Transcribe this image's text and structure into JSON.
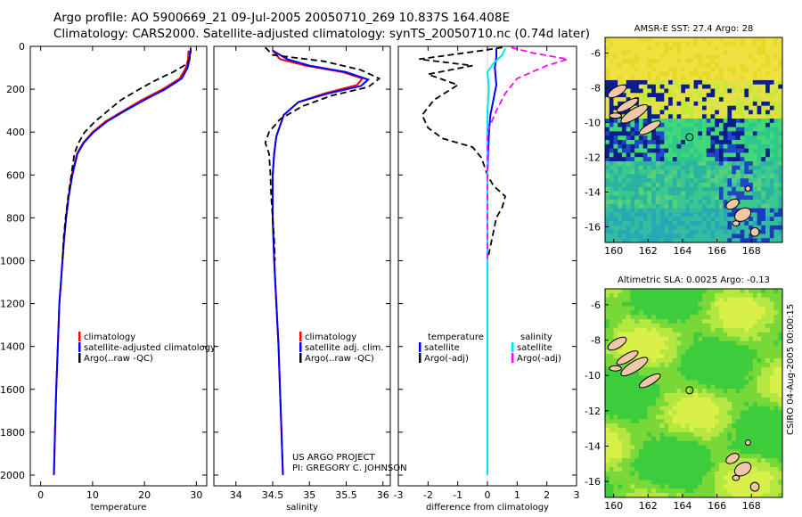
{
  "header": {
    "line1": "Argo profile: AO 5900669_21 09-Jul-2005 20050710_269 10.837S 164.408E",
    "line2": "Climatology: CARS2000. Satellite-adjusted climatology: synTS_20050710.nc (0.74d later)"
  },
  "credit": {
    "line1": "US ARGO PROJECT",
    "line2": "PI: GREGORY C. JOHNSON"
  },
  "sidenote": "CSIRO 04-Aug-2005 00:00:15",
  "colors": {
    "climatology": "#ff0000",
    "satellite": "#0000ff",
    "argo": "#000000",
    "salinity_sat": "#00e5ee",
    "salinity_argo": "#ff00ff"
  },
  "chart_data": [
    {
      "type": "line",
      "title": "",
      "xlabel": "temperature",
      "ylabel": "",
      "xlim": [
        -2,
        32
      ],
      "ylim": [
        2050,
        0
      ],
      "xticks": [
        "0",
        "10",
        "20",
        "30"
      ],
      "xtick_values": [
        0,
        10,
        20,
        30
      ],
      "yticks": [
        "0",
        "200",
        "400",
        "600",
        "800",
        "1000",
        "1200",
        "1400",
        "1600",
        "1800",
        "2000"
      ],
      "legend": [
        "climatology",
        "satellite-adjusted climatology",
        "Argo(..raw -QC)"
      ],
      "series": [
        {
          "name": "climatology",
          "style": "solid",
          "color": "#ff0000",
          "points": [
            [
              28.5,
              20
            ],
            [
              28.4,
              60
            ],
            [
              28.0,
              100
            ],
            [
              26.8,
              150
            ],
            [
              23.5,
              200
            ],
            [
              19.5,
              250
            ],
            [
              16.0,
              300
            ],
            [
              12.5,
              350
            ],
            [
              10.0,
              400
            ],
            [
              8.2,
              450
            ],
            [
              7.0,
              500
            ],
            [
              6.0,
              600
            ],
            [
              5.4,
              700
            ],
            [
              4.9,
              800
            ],
            [
              4.5,
              900
            ],
            [
              4.2,
              1000
            ],
            [
              3.9,
              1100
            ],
            [
              3.6,
              1200
            ],
            [
              3.3,
              1400
            ],
            [
              3.0,
              1600
            ],
            [
              2.75,
              1800
            ],
            [
              2.55,
              2000
            ]
          ]
        },
        {
          "name": "satellite-adjusted climatology",
          "style": "solid",
          "color": "#0000ff",
          "points": [
            [
              28.8,
              20
            ],
            [
              28.7,
              60
            ],
            [
              28.3,
              100
            ],
            [
              27.2,
              150
            ],
            [
              24.0,
              200
            ],
            [
              20.0,
              250
            ],
            [
              16.3,
              300
            ],
            [
              12.8,
              350
            ],
            [
              10.2,
              400
            ],
            [
              8.3,
              450
            ],
            [
              7.1,
              500
            ],
            [
              6.1,
              600
            ],
            [
              5.4,
              700
            ],
            [
              4.9,
              800
            ],
            [
              4.5,
              900
            ],
            [
              4.2,
              1000
            ],
            [
              3.9,
              1100
            ],
            [
              3.6,
              1200
            ],
            [
              3.3,
              1400
            ],
            [
              3.0,
              1600
            ],
            [
              2.75,
              1800
            ],
            [
              2.55,
              2000
            ]
          ]
        },
        {
          "name": "Argo(..raw -QC)",
          "style": "dashed",
          "color": "#000000",
          "points": [
            [
              28.9,
              5
            ],
            [
              28.9,
              40
            ],
            [
              28.3,
              80
            ],
            [
              25.5,
              120
            ],
            [
              22.0,
              160
            ],
            [
              19.0,
              200
            ],
            [
              15.5,
              250
            ],
            [
              13.0,
              300
            ],
            [
              10.5,
              350
            ],
            [
              8.5,
              400
            ],
            [
              7.3,
              450
            ],
            [
              6.5,
              500
            ],
            [
              5.9,
              600
            ],
            [
              5.3,
              700
            ],
            [
              4.8,
              800
            ],
            [
              4.4,
              900
            ],
            [
              4.2,
              1000
            ]
          ]
        }
      ]
    },
    {
      "type": "line",
      "title": "",
      "xlabel": "salinity",
      "ylabel": "",
      "xlim": [
        33.7,
        36.1
      ],
      "ylim": [
        2050,
        0
      ],
      "xticks": [
        "34",
        "34.5",
        "35",
        "35.5",
        "36"
      ],
      "xtick_values": [
        34,
        34.5,
        35,
        35.5,
        36
      ],
      "legend": [
        "climatology",
        "satellite adj. clim.",
        "Argo(..raw -QC)"
      ],
      "series": [
        {
          "name": "climatology",
          "style": "solid",
          "color": "#ff0000",
          "points": [
            [
              34.5,
              20
            ],
            [
              34.6,
              60
            ],
            [
              34.95,
              90
            ],
            [
              35.45,
              120
            ],
            [
              35.72,
              150
            ],
            [
              35.65,
              180
            ],
            [
              35.2,
              220
            ],
            [
              34.85,
              260
            ],
            [
              34.65,
              320
            ],
            [
              34.55,
              420
            ],
            [
              34.52,
              500
            ],
            [
              34.5,
              600
            ],
            [
              34.5,
              800
            ],
            [
              34.52,
              1000
            ],
            [
              34.55,
              1200
            ],
            [
              34.58,
              1400
            ],
            [
              34.6,
              1600
            ],
            [
              34.62,
              1800
            ],
            [
              34.64,
              2000
            ]
          ]
        },
        {
          "name": "satellite adj. clim.",
          "style": "solid",
          "color": "#0000ff",
          "points": [
            [
              34.5,
              20
            ],
            [
              34.7,
              60
            ],
            [
              35.0,
              90
            ],
            [
              35.5,
              120
            ],
            [
              35.8,
              155
            ],
            [
              35.7,
              185
            ],
            [
              35.25,
              220
            ],
            [
              34.85,
              260
            ],
            [
              34.65,
              320
            ],
            [
              34.55,
              420
            ],
            [
              34.52,
              500
            ],
            [
              34.5,
              600
            ],
            [
              34.5,
              800
            ],
            [
              34.52,
              1000
            ],
            [
              34.55,
              1200
            ],
            [
              34.58,
              1400
            ],
            [
              34.6,
              1600
            ],
            [
              34.62,
              1800
            ],
            [
              34.64,
              2000
            ]
          ]
        },
        {
          "name": "Argo(..raw -QC)",
          "style": "dashed",
          "color": "#000000",
          "points": [
            [
              34.4,
              5
            ],
            [
              34.5,
              40
            ],
            [
              35.2,
              70
            ],
            [
              35.7,
              110
            ],
            [
              35.95,
              150
            ],
            [
              35.8,
              190
            ],
            [
              35.3,
              230
            ],
            [
              34.9,
              280
            ],
            [
              34.6,
              340
            ],
            [
              34.45,
              400
            ],
            [
              34.4,
              450
            ],
            [
              34.45,
              500
            ],
            [
              34.47,
              600
            ],
            [
              34.48,
              700
            ],
            [
              34.5,
              800
            ],
            [
              34.52,
              900
            ],
            [
              34.53,
              1000
            ]
          ]
        }
      ]
    },
    {
      "type": "line",
      "title": "",
      "xlabel": "difference from climatology",
      "ylabel": "",
      "xlim": [
        -3,
        3
      ],
      "ylim": [
        2050,
        0
      ],
      "xticks": [
        "-3",
        "-2",
        "-1",
        "0",
        "1",
        "2",
        "3"
      ],
      "xtick_values": [
        -3,
        -2,
        -1,
        0,
        1,
        2,
        3
      ],
      "legend": [
        "temperature",
        "satellite",
        "Argo(-adj)",
        "salinity",
        "satellite",
        "Argo(-adj)"
      ],
      "series": [
        {
          "name": "temperature satellite",
          "style": "solid",
          "color": "#0000ff",
          "points": [
            [
              0.3,
              10
            ],
            [
              0.3,
              50
            ],
            [
              0.25,
              100
            ],
            [
              0.3,
              180
            ],
            [
              0.2,
              250
            ],
            [
              0.1,
              320
            ],
            [
              0.05,
              400
            ],
            [
              0.02,
              500
            ],
            [
              0.0,
              600
            ],
            [
              0.0,
              2000
            ]
          ]
        },
        {
          "name": "temperature Argo(-adj)",
          "style": "dashed",
          "color": "#000000",
          "points": [
            [
              0.5,
              5
            ],
            [
              -0.2,
              20
            ],
            [
              -2.3,
              60
            ],
            [
              -0.5,
              90
            ],
            [
              -2.0,
              130
            ],
            [
              -1.0,
              180
            ],
            [
              -1.8,
              250
            ],
            [
              -2.2,
              320
            ],
            [
              -2.0,
              380
            ],
            [
              -1.5,
              430
            ],
            [
              -0.5,
              470
            ],
            [
              -0.2,
              520
            ],
            [
              0.0,
              600
            ],
            [
              0.2,
              650
            ],
            [
              0.6,
              700
            ],
            [
              0.5,
              750
            ],
            [
              0.3,
              800
            ],
            [
              0.0,
              1000
            ]
          ]
        },
        {
          "name": "salinity satellite",
          "style": "solid",
          "color": "#00e5ee",
          "points": [
            [
              0.6,
              10
            ],
            [
              0.5,
              40
            ],
            [
              0.2,
              80
            ],
            [
              0.0,
              120
            ],
            [
              0.05,
              200
            ],
            [
              0.0,
              300
            ],
            [
              0.0,
              2000
            ]
          ]
        },
        {
          "name": "salinity Argo(-adj)",
          "style": "dashed",
          "color": "#ff00ff",
          "points": [
            [
              0.8,
              5
            ],
            [
              1.5,
              30
            ],
            [
              2.7,
              60
            ],
            [
              2.0,
              90
            ],
            [
              1.0,
              150
            ],
            [
              0.6,
              220
            ],
            [
              0.3,
              300
            ],
            [
              0.0,
              400
            ],
            [
              0.0,
              1000
            ]
          ]
        }
      ]
    },
    {
      "type": "heatmap",
      "title": "AMSR-E SST: 27.4 Argo: 28",
      "xticks": [
        "160",
        "162",
        "164",
        "166",
        "168"
      ],
      "yticks": [
        "-6",
        "-8",
        "-10",
        "-12",
        "-14",
        "-16"
      ],
      "xlim": [
        159.5,
        169.8
      ],
      "ylim": [
        -16.9,
        -5.1
      ],
      "marker": {
        "lon": 164.408,
        "lat": -10.837
      }
    },
    {
      "type": "heatmap",
      "title": "Altimetric SLA: 0.0025 Argo: -0.13",
      "xticks": [
        "160",
        "162",
        "164",
        "166",
        "168"
      ],
      "yticks": [
        "-6",
        "-8",
        "-10",
        "-12",
        "-14",
        "-16"
      ],
      "xlim": [
        159.5,
        169.8
      ],
      "ylim": [
        -16.9,
        -5.1
      ],
      "marker": {
        "lon": 164.408,
        "lat": -10.837
      }
    }
  ]
}
